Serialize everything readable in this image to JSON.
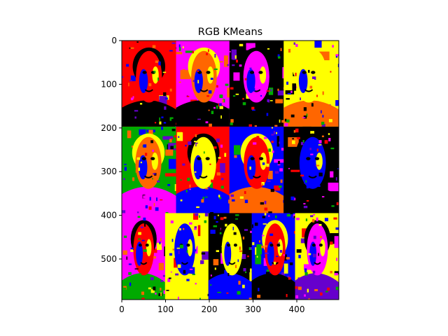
{
  "chart_data": {
    "type": "heatmap",
    "title": "RGB KMeans",
    "xlabel": "",
    "ylabel": "",
    "image_width": 496,
    "image_height": 593,
    "xlim": [
      0,
      496
    ],
    "ylim": [
      593,
      0
    ],
    "x_ticks": [
      0,
      100,
      200,
      300,
      400
    ],
    "y_ticks": [
      0,
      100,
      200,
      300,
      400,
      500
    ],
    "grid": false,
    "legend": "none",
    "palette": [
      "#000000",
      "#ff0000",
      "#ffff00",
      "#0000ff",
      "#ff00ff",
      "#ff6600",
      "#00aa00",
      "#6600cc"
    ],
    "description_of_content": "15-panel collage of portraits quantized into a small set of flat colours (k-means on RGB)"
  }
}
